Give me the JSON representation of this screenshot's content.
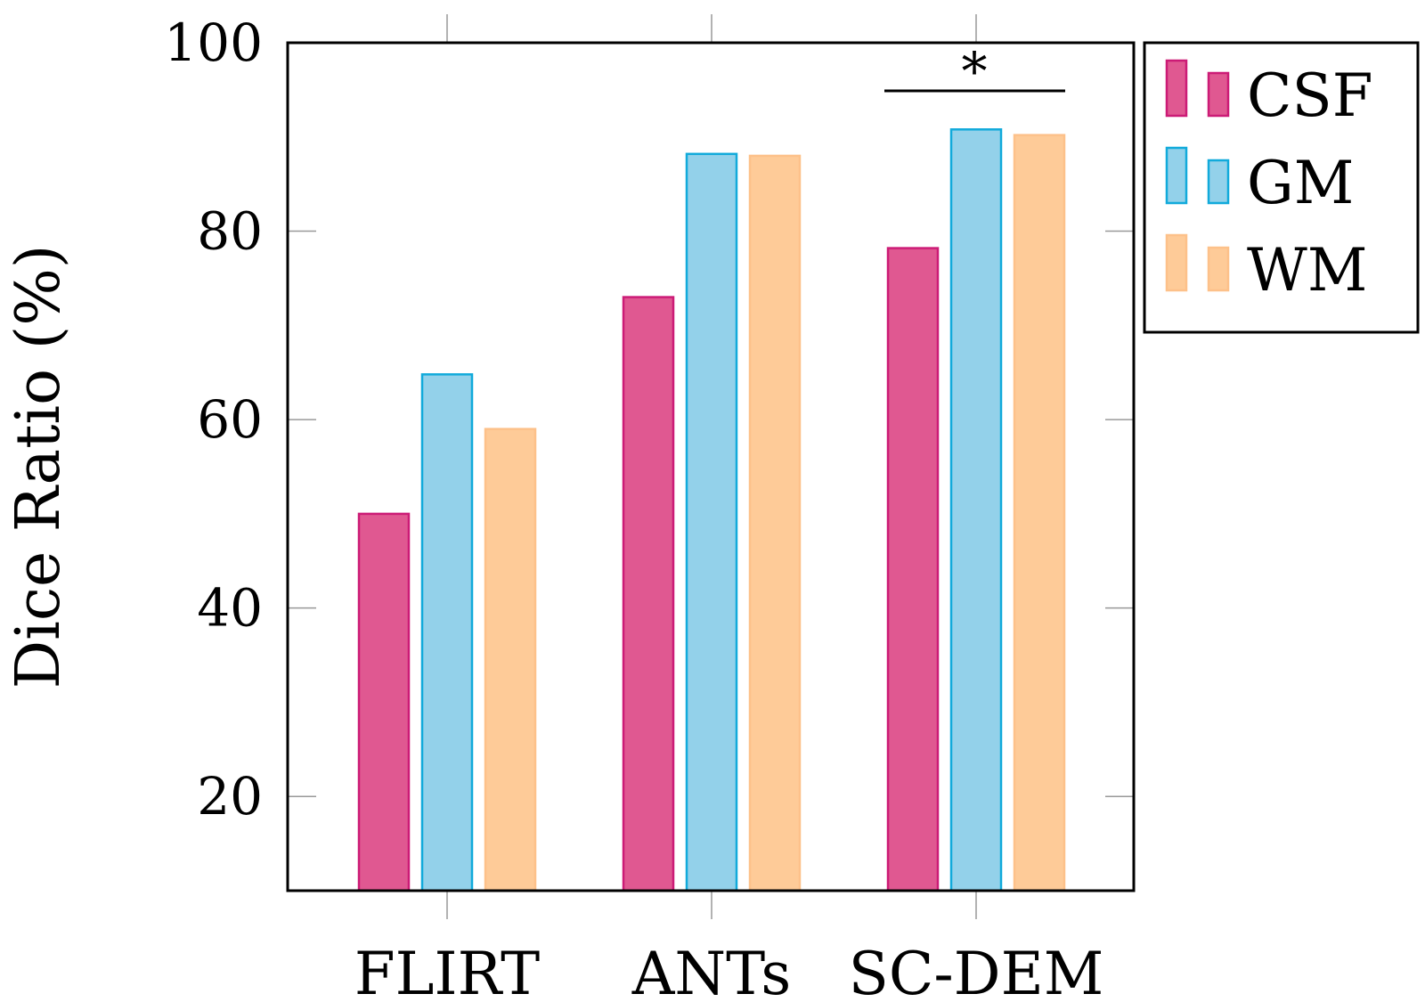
{
  "chart_data": {
    "type": "bar",
    "title": "",
    "xlabel": "",
    "ylabel": "Dice Ratio (%)",
    "ylim": [
      10,
      100
    ],
    "yticks": [
      20,
      40,
      60,
      80,
      100
    ],
    "categories": [
      "FLIRT",
      "ANTs",
      "SC-DEM"
    ],
    "series": [
      {
        "name": "CSF",
        "values": [
          50,
          73,
          78.2
        ],
        "fill": "#e05891",
        "stroke": "#cc1b76"
      },
      {
        "name": "GM",
        "values": [
          64.8,
          88.2,
          90.8
        ],
        "fill": "#93d1ea",
        "stroke": "#11aadb"
      },
      {
        "name": "WM",
        "values": [
          59,
          88,
          90.2
        ],
        "fill": "#fecb98",
        "stroke": "#fdc18a"
      }
    ],
    "legend": {
      "position": "outside-top-right",
      "entries": [
        "CSF",
        "GM",
        "WM"
      ]
    },
    "annotations": [
      {
        "text": "*",
        "category": "SC-DEM",
        "type": "significance-bracket"
      }
    ],
    "grid": false
  }
}
